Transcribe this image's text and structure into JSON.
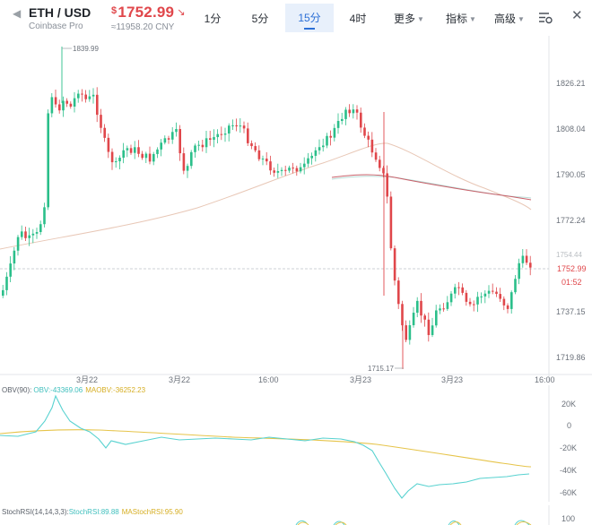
{
  "header": {
    "pair": "ETH / USD",
    "exchange": "Coinbase Pro",
    "price_currency_symbol": "$",
    "price": "1752.99",
    "price_arrow": "↘",
    "price_cny": "≈11958.20 CNY",
    "price_color": "#e0474b"
  },
  "tabs": [
    {
      "label": "1分"
    },
    {
      "label": "5分"
    },
    {
      "label": "15分",
      "active": true
    },
    {
      "label": "4时"
    },
    {
      "label": "更多",
      "dropdown": true
    },
    {
      "label": "指标",
      "dropdown": true
    },
    {
      "label": "高级",
      "dropdown": true
    }
  ],
  "icons": {
    "back": "back-chevron-icon",
    "settings": "chart-settings-icon",
    "close": "close-icon"
  },
  "chart": {
    "y_ticks": [
      "1826.21",
      "1808.04",
      "1790.05",
      "1772.24",
      "1737.15",
      "1719.86"
    ],
    "x_ticks": [
      "3月22",
      "3月22",
      "16:00",
      "3月23",
      "3月23",
      "16:00"
    ],
    "high_label": "1839.99",
    "low_label": "1715.17",
    "price_tag": "1752.99",
    "countdown": "01:52",
    "partial_tick": "1754.44",
    "up_color": "#2bbf8a",
    "down_color": "#e0474b"
  },
  "obv": {
    "title": "OBV(90):",
    "obv_label": "OBV:",
    "obv_value": "-43369.06",
    "maobv_label": "MAOBV:",
    "maobv_value": "-36252.23",
    "y_ticks": [
      "20K",
      "0",
      "-20K",
      "-40K",
      "-60K"
    ],
    "line_color": "#58d2d0",
    "ma_color": "#e6c44a"
  },
  "stoch": {
    "title": "StochRSI(14,14,3,3):",
    "k_label": "StochRSI:",
    "k_value": "89.88",
    "d_label": "MAStochRSI:",
    "d_value": "95.90",
    "y_tick": "100"
  }
}
